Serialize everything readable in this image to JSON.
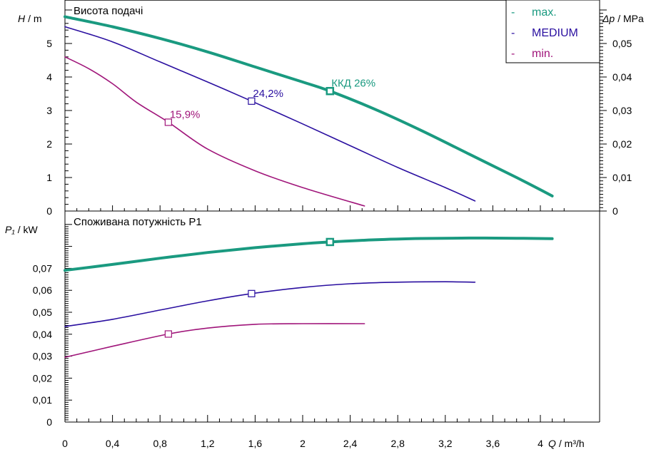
{
  "colors": {
    "max": "#1a9a80",
    "medium": "#2a0fa0",
    "min": "#a0157a",
    "axis": "#000000"
  },
  "chart_data": [
    {
      "type": "line",
      "title": "Висота подачі",
      "ylabel": "H / m",
      "ylabel_var": "H",
      "ylabel_unit": "/ m",
      "y2label": "Δp / MPa",
      "y2label_var": "Δp",
      "y2label_unit": "/ MPa",
      "xlim": [
        0,
        4.2
      ],
      "ylim": [
        0,
        6
      ],
      "y2lim": [
        0,
        0.06
      ],
      "yticks": [
        "0",
        "1",
        "2",
        "3",
        "4",
        "5"
      ],
      "y2ticks": [
        "0",
        "0,01",
        "0,02",
        "0,03",
        "0,04",
        "0,05"
      ],
      "legend_placement": "top-right",
      "legend": [
        {
          "marker": "-",
          "label": "max."
        },
        {
          "marker": "-",
          "label": "MEDIUM"
        },
        {
          "marker": "-",
          "label": "min."
        }
      ],
      "series": [
        {
          "name": "max.",
          "x": [
            0,
            0.4,
            0.8,
            1.2,
            1.6,
            2.0,
            2.23,
            2.6,
            3.0,
            3.4,
            3.8,
            4.1
          ],
          "y": [
            5.8,
            5.5,
            5.15,
            4.75,
            4.3,
            3.85,
            3.58,
            3.05,
            2.4,
            1.7,
            1.0,
            0.45
          ],
          "marker": {
            "x": 2.23,
            "y": 3.58,
            "label": "ККД  26%"
          }
        },
        {
          "name": "MEDIUM",
          "x": [
            0,
            0.4,
            0.8,
            1.2,
            1.57,
            2.0,
            2.4,
            2.8,
            3.2,
            3.45
          ],
          "y": [
            5.5,
            5.05,
            4.45,
            3.85,
            3.28,
            2.6,
            1.95,
            1.3,
            0.7,
            0.3
          ],
          "marker": {
            "x": 1.57,
            "y": 3.28,
            "label": "24,2%"
          }
        },
        {
          "name": "min.",
          "x": [
            0,
            0.2,
            0.4,
            0.6,
            0.87,
            1.2,
            1.6,
            2.0,
            2.52
          ],
          "y": [
            4.6,
            4.25,
            3.8,
            3.25,
            2.65,
            1.85,
            1.2,
            0.7,
            0.15
          ],
          "marker": {
            "x": 0.87,
            "y": 2.65,
            "label": "15,9%"
          }
        }
      ]
    },
    {
      "type": "line",
      "title": "Споживана потужність P1",
      "ylabel": "P₁ / kW",
      "ylabel_var": "P₁",
      "ylabel_unit": "/ kW",
      "xlabel": "Q / m³/h",
      "xlabel_var": "Q",
      "xlabel_unit": "/ m³/h",
      "xlim": [
        0,
        4.2
      ],
      "ylim": [
        0,
        0.09
      ],
      "yticks": [
        "0",
        "0,01",
        "0,02",
        "0,03",
        "0,04",
        "0,05",
        "0,06",
        "0,07"
      ],
      "xticks": [
        "0",
        "0,4",
        "0,8",
        "1,2",
        "1,6",
        "2",
        "2,4",
        "2,8",
        "3,2",
        "3,6",
        "4"
      ],
      "series": [
        {
          "name": "max.",
          "x": [
            0,
            0.4,
            0.8,
            1.2,
            1.6,
            2.0,
            2.23,
            2.6,
            3.0,
            3.4,
            3.8,
            4.1
          ],
          "y": [
            0.0691,
            0.0718,
            0.0746,
            0.0772,
            0.0794,
            0.0812,
            0.082,
            0.083,
            0.0836,
            0.0838,
            0.0837,
            0.0835
          ],
          "marker": {
            "x": 2.23,
            "y": 0.082
          }
        },
        {
          "name": "MEDIUM",
          "x": [
            0,
            0.4,
            0.8,
            1.2,
            1.57,
            2.0,
            2.4,
            2.8,
            3.2,
            3.45
          ],
          "y": [
            0.0435,
            0.0468,
            0.051,
            0.0552,
            0.0585,
            0.0613,
            0.063,
            0.0637,
            0.0639,
            0.0637
          ],
          "marker": {
            "x": 1.57,
            "y": 0.0585
          }
        },
        {
          "name": "min.",
          "x": [
            0,
            0.4,
            0.87,
            1.2,
            1.6,
            2.0,
            2.52
          ],
          "y": [
            0.0295,
            0.0345,
            0.0401,
            0.0428,
            0.0445,
            0.0448,
            0.0448
          ],
          "marker": {
            "x": 0.87,
            "y": 0.0401
          }
        }
      ]
    }
  ]
}
